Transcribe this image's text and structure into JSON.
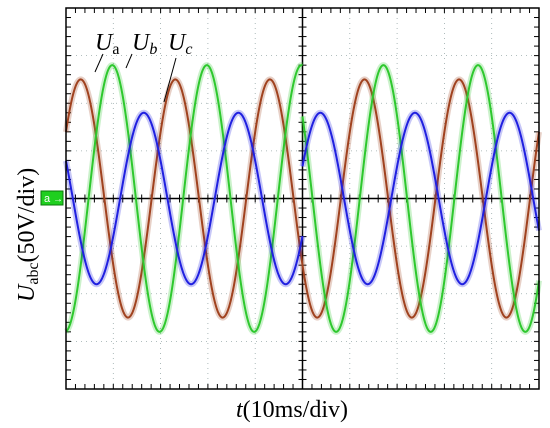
{
  "chart_data": {
    "type": "line",
    "title": "",
    "xlabel": "t(10ms/div)",
    "ylabel": "Uabc(50V/div)",
    "ylabel_main": "U",
    "ylabel_sub": "abc",
    "ylabel_rest": "(50V/div)",
    "x_unit": "ms",
    "y_unit": "V",
    "xlim": [
      0,
      100
    ],
    "ylim": [
      -200,
      200
    ],
    "x_div": 10,
    "y_div": 50,
    "grid": true,
    "channel_marker": "a",
    "series_labels": [
      {
        "main": "U",
        "sub": "a",
        "series": "Ua"
      },
      {
        "main": "U",
        "sub": "b",
        "series": "Ub"
      },
      {
        "main": "U",
        "sub": "c",
        "series": "Uc"
      }
    ],
    "series": [
      {
        "name": "Ua",
        "color": "#a0421f",
        "amplitude": 125,
        "period_ms": 20,
        "phase_deg": 34,
        "segments": [
          {
            "x_start": 0,
            "x_end": 100,
            "amplitude": 125,
            "phase_deg": 34
          }
        ]
      },
      {
        "name": "Ub",
        "color": "#2ec82e",
        "amplitude": 140,
        "period_ms": 20,
        "phase_deg": -86,
        "segments": [
          {
            "x_start": 0,
            "x_end": 50,
            "amplitude": 140,
            "phase_deg": -86
          },
          {
            "x_start": 50,
            "x_end": 100,
            "amplitude": 140,
            "phase_deg": -38
          }
        ]
      },
      {
        "name": "Uc",
        "color": "#2020e0",
        "amplitude": 90,
        "period_ms": 20,
        "phase_deg": 154,
        "segments": [
          {
            "x_start": 0,
            "x_end": 50,
            "amplitude": 90,
            "phase_deg": 154
          },
          {
            "x_start": 50,
            "x_end": 100,
            "amplitude": 90,
            "phase_deg": 202
          }
        ]
      }
    ]
  }
}
